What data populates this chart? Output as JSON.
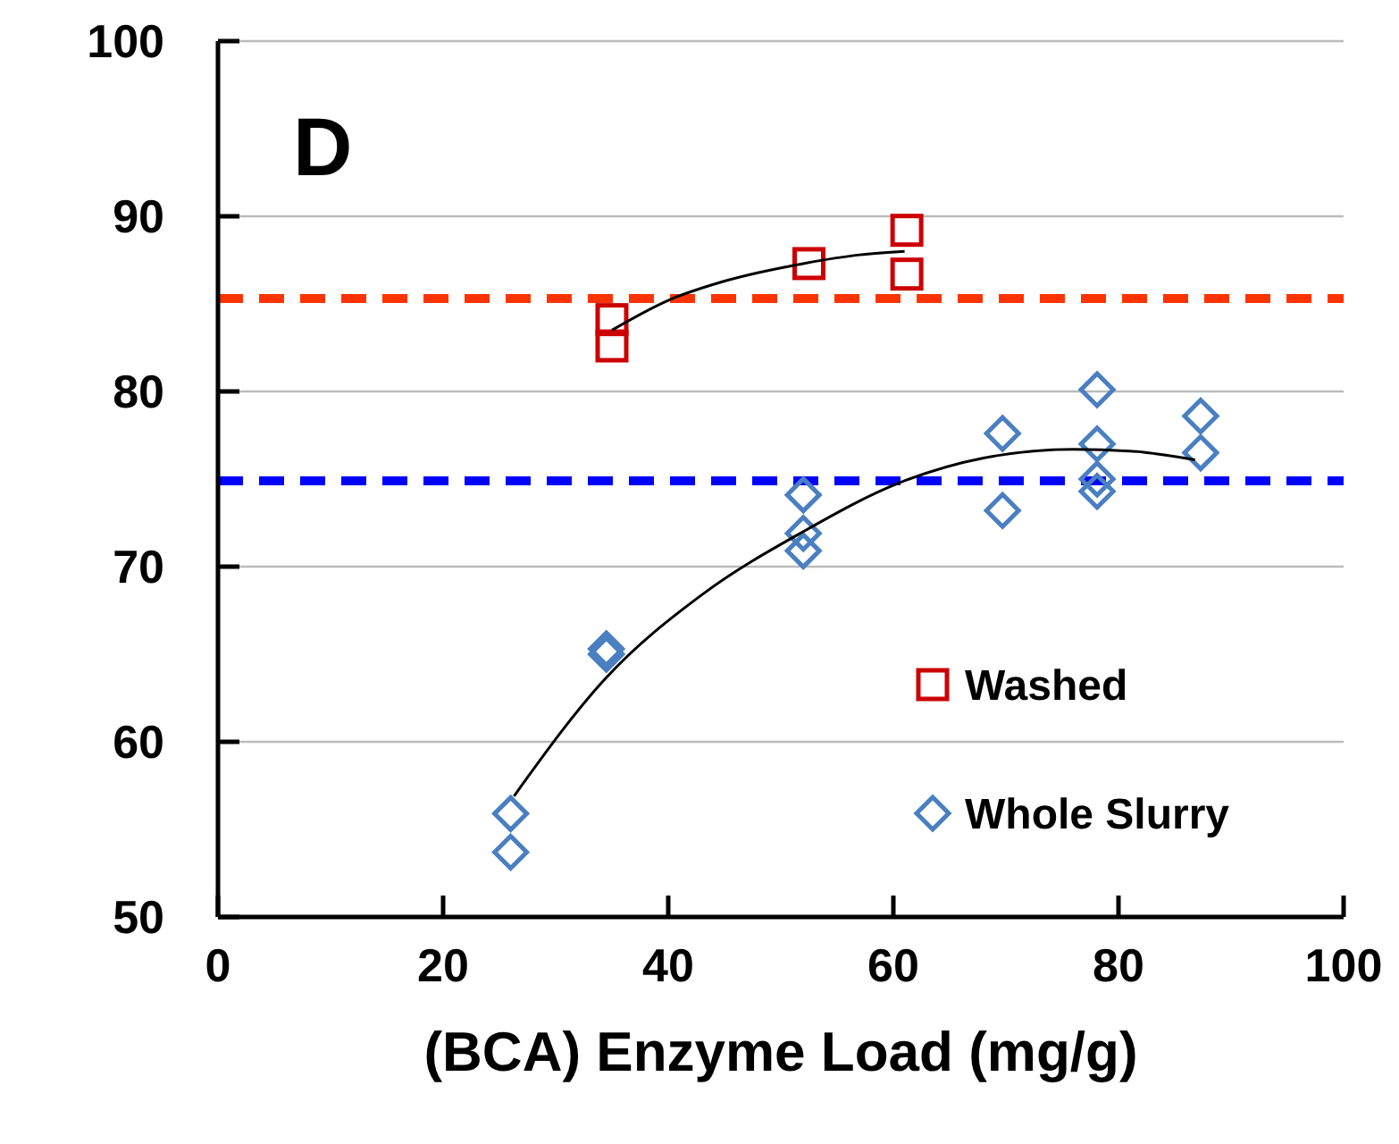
{
  "chart_data": {
    "type": "scatter",
    "xlabel": "(BCA) Enzyme Load (mg/g)",
    "annotations": [
      "D"
    ],
    "xlim": [
      0,
      100
    ],
    "xticks": [
      0,
      20,
      40,
      60,
      80,
      100
    ],
    "ylim": [
      50,
      100
    ],
    "yticks": [
      50,
      60,
      70,
      80,
      90,
      100
    ],
    "grid": "y",
    "legend": "bottom right",
    "series": [
      {
        "name": "Washed",
        "marker": "square",
        "color": "#cc0000",
        "x": [
          35,
          35,
          52.5,
          61.2,
          61.2
        ],
        "values": [
          84.1,
          82.6,
          87.3,
          89.2,
          86.7
        ]
      },
      {
        "name": "Whole Slurry",
        "marker": "diamond",
        "color": "#4a7fc1",
        "x": [
          26,
          26,
          34.5,
          34.5,
          52,
          52,
          52,
          69.7,
          69.7,
          78.1,
          78.1,
          78.1,
          78.1,
          87.3,
          87.3
        ],
        "values": [
          55.9,
          53.7,
          65.3,
          65,
          74.1,
          71.9,
          70.9,
          77.6,
          73.2,
          80.1,
          77,
          75,
          74.3,
          78.6,
          76.5
        ]
      },
      {
        "type": "line",
        "color": "#000000",
        "x": [
          35,
          40,
          45,
          52,
          57,
          61
        ],
        "values": [
          83.5,
          85.2,
          86.3,
          87.3,
          87.8,
          88
        ]
      },
      {
        "type": "line",
        "color": "#000000",
        "x": [
          26.3,
          34.4,
          43,
          52,
          60.6,
          68,
          76,
          81,
          86.8
        ],
        "values": [
          56.9,
          63.6,
          68.4,
          72,
          74.8,
          76.2,
          76.7,
          76.6,
          76.1
        ]
      }
    ],
    "ref_lines": [
      {
        "axis": "y",
        "value": 85.3,
        "color": "#ff3300",
        "line_style": "dashed"
      },
      {
        "axis": "y",
        "value": 74.9,
        "color": "#0000ff",
        "line_style": "dashed"
      }
    ]
  }
}
